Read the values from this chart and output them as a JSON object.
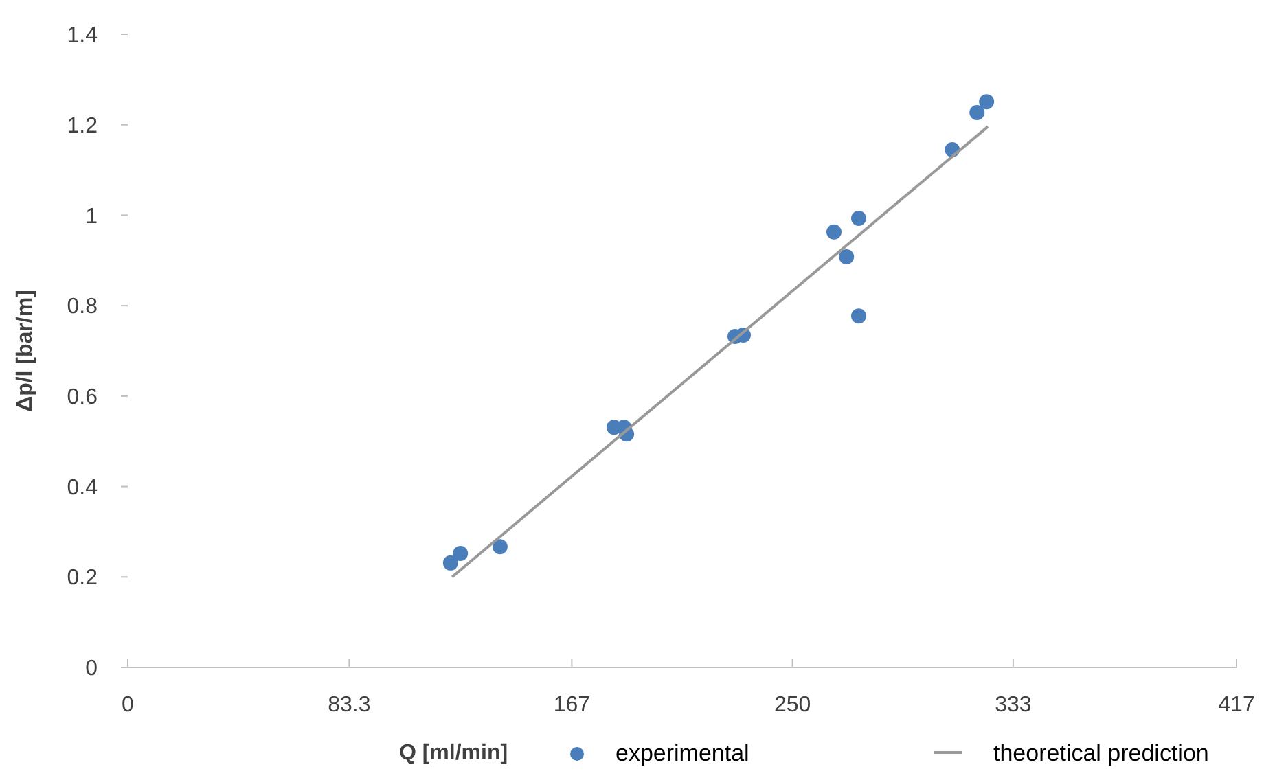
{
  "chart_data": {
    "type": "scatter",
    "xlabel": "Q [ml/min]",
    "ylabel": "Δp/l [bar/m]",
    "xlim": [
      0,
      417
    ],
    "xticks": [
      0,
      83.3,
      167,
      250,
      333,
      417
    ],
    "ylim": [
      0,
      1.4
    ],
    "yticks": [
      0,
      0.2,
      0.4,
      0.6,
      0.8,
      1,
      1.2,
      1.4
    ],
    "grid": false,
    "legend": "bottom",
    "marker": "circle",
    "series": [
      {
        "name": "experimental",
        "color": "#4a7ebb",
        "x": [
          121.4,
          125.1,
          140.0,
          182.9,
          186.6,
          187.6,
          228.4,
          231.5,
          265.6,
          270.3,
          274.9,
          274.9,
          310.1,
          319.4,
          323.0
        ],
        "values": [
          0.231,
          0.252,
          0.267,
          0.531,
          0.531,
          0.516,
          0.732,
          0.735,
          0.963,
          0.908,
          0.993,
          0.777,
          1.145,
          1.227,
          1.251
        ]
      },
      {
        "name": "theoretical prediction",
        "type": "line",
        "color": "#999999",
        "marker": "none",
        "x": [
          122.0,
          323.5
        ],
        "values": [
          0.2,
          1.196
        ]
      }
    ]
  }
}
